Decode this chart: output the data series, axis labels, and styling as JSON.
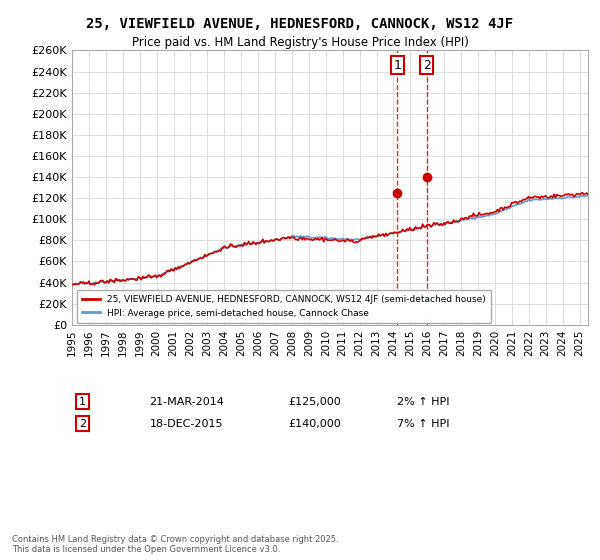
{
  "title": "25, VIEWFIELD AVENUE, HEDNESFORD, CANNOCK, WS12 4JF",
  "subtitle": "Price paid vs. HM Land Registry's House Price Index (HPI)",
  "ylim": [
    0,
    260000
  ],
  "yticks": [
    0,
    20000,
    40000,
    60000,
    80000,
    100000,
    120000,
    140000,
    160000,
    180000,
    200000,
    220000,
    240000,
    260000
  ],
  "year_start": 1995,
  "year_end": 2025,
  "sale1_date": "21-MAR-2014",
  "sale1_price": 125000,
  "sale1_pct": "2%",
  "sale1_label": "1",
  "sale2_date": "18-DEC-2015",
  "sale2_price": 140000,
  "sale2_pct": "7%",
  "sale2_label": "2",
  "legend_line1": "25, VIEWFIELD AVENUE, HEDNESFORD, CANNOCK, WS12 4JF (semi-detached house)",
  "legend_line2": "HPI: Average price, semi-detached house, Cannock Chase",
  "footnote": "Contains HM Land Registry data © Crown copyright and database right 2025.\nThis data is licensed under the Open Government Licence v3.0.",
  "line_color_red": "#cc0000",
  "line_color_blue": "#6699cc",
  "marker_color_red": "#cc0000",
  "sale_vline_color": "#cc0000",
  "background_color": "#ffffff",
  "grid_color": "#dddddd"
}
